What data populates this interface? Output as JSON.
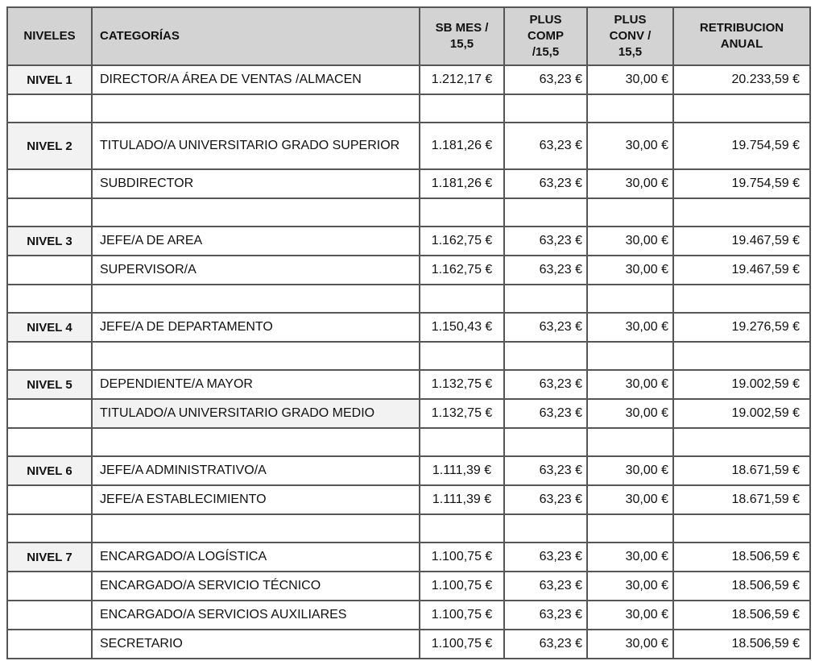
{
  "colors": {
    "header_bg": "#d3d3d3",
    "shaded_bg": "#f2f2f2",
    "border": "#565656",
    "text": "#111111",
    "page_bg": "#ffffff"
  },
  "table": {
    "headers": [
      {
        "id": "niveles",
        "label": "NIVELES"
      },
      {
        "id": "categorias",
        "label": "CATEGORÍAS"
      },
      {
        "id": "sb_mes",
        "label": "SB MES /\n15,5"
      },
      {
        "id": "plus_comp",
        "label": "PLUS\nCOMP\n/15,5"
      },
      {
        "id": "plus_conv",
        "label": "PLUS\nCONV /\n15,5"
      },
      {
        "id": "retribucion",
        "label": "RETRIBUCION\nANUAL"
      }
    ],
    "rows": [
      {
        "type": "data",
        "level": "NIVEL 1",
        "level_shaded": true,
        "category": "DIRECTOR/A ÁREA DE VENTAS /ALMACEN",
        "sb_mes": "1.212,17 €",
        "plus_comp": "63,23 €",
        "plus_conv": "30,00 €",
        "retribucion": "20.233,59 €"
      },
      {
        "type": "spacer"
      },
      {
        "type": "data",
        "tall": true,
        "level": "NIVEL 2",
        "level_shaded": true,
        "category": "TITULADO/A UNIVERSITARIO GRADO SUPERIOR",
        "sb_mes": "1.181,26 €",
        "plus_comp": "63,23 €",
        "plus_conv": "30,00 €",
        "retribucion": "19.754,59 €"
      },
      {
        "type": "data",
        "level": "",
        "category": "SUBDIRECTOR",
        "sb_mes": "1.181,26 €",
        "plus_comp": "63,23 €",
        "plus_conv": "30,00 €",
        "retribucion": "19.754,59 €"
      },
      {
        "type": "spacer"
      },
      {
        "type": "data",
        "level": "NIVEL 3",
        "level_shaded": true,
        "category": "JEFE/A DE AREA",
        "sb_mes": "1.162,75 €",
        "plus_comp": "63,23 €",
        "plus_conv": "30,00 €",
        "retribucion": "19.467,59 €"
      },
      {
        "type": "data",
        "level": "",
        "category": "SUPERVISOR/A",
        "sb_mes": "1.162,75 €",
        "plus_comp": "63,23 €",
        "plus_conv": "30,00 €",
        "retribucion": "19.467,59 €"
      },
      {
        "type": "spacer"
      },
      {
        "type": "data",
        "level": "NIVEL 4",
        "level_shaded": true,
        "category": "JEFE/A DE DEPARTAMENTO",
        "sb_mes": "1.150,43 €",
        "plus_comp": "63,23 €",
        "plus_conv": "30,00 €",
        "retribucion": "19.276,59 €"
      },
      {
        "type": "spacer"
      },
      {
        "type": "data",
        "level": "NIVEL 5",
        "level_shaded": true,
        "category": "DEPENDIENTE/A MAYOR",
        "sb_mes": "1.132,75 €",
        "plus_comp": "63,23 €",
        "plus_conv": "30,00 €",
        "retribucion": "19.002,59 €"
      },
      {
        "type": "data",
        "level": "",
        "category": "TITULADO/A UNIVERSITARIO GRADO MEDIO",
        "category_shaded": true,
        "sb_mes": "1.132,75 €",
        "plus_comp": "63,23 €",
        "plus_conv": "30,00 €",
        "retribucion": "19.002,59 €"
      },
      {
        "type": "spacer"
      },
      {
        "type": "data",
        "level": "NIVEL 6",
        "level_shaded": true,
        "category": "JEFE/A ADMINISTRATIVO/A",
        "sb_mes": "1.111,39 €",
        "plus_comp": "63,23 €",
        "plus_conv": "30,00 €",
        "retribucion": "18.671,59 €"
      },
      {
        "type": "data",
        "level": "",
        "category": "JEFE/A ESTABLECIMIENTO",
        "sb_mes": "1.111,39 €",
        "plus_comp": "63,23 €",
        "plus_conv": "30,00 €",
        "retribucion": "18.671,59 €"
      },
      {
        "type": "spacer"
      },
      {
        "type": "data",
        "level": "NIVEL 7",
        "level_shaded": true,
        "category": "ENCARGADO/A LOGÍSTICA",
        "sb_mes": "1.100,75 €",
        "plus_comp": "63,23 €",
        "plus_conv": "30,00 €",
        "retribucion": "18.506,59 €"
      },
      {
        "type": "data",
        "level": "",
        "category": "ENCARGADO/A SERVICIO TÉCNICO",
        "sb_mes": "1.100,75 €",
        "plus_comp": "63,23 €",
        "plus_conv": "30,00 €",
        "retribucion": "18.506,59 €"
      },
      {
        "type": "data",
        "level": "",
        "category": "ENCARGADO/A SERVICIOS AUXILIARES",
        "sb_mes": "1.100,75 €",
        "plus_comp": "63,23 €",
        "plus_conv": "30,00 €",
        "retribucion": "18.506,59 €"
      },
      {
        "type": "data",
        "level": "",
        "category": "SECRETARIO",
        "sb_mes": "1.100,75 €",
        "plus_comp": "63,23 €",
        "plus_conv": "30,00 €",
        "retribucion": "18.506,59 €"
      }
    ]
  }
}
